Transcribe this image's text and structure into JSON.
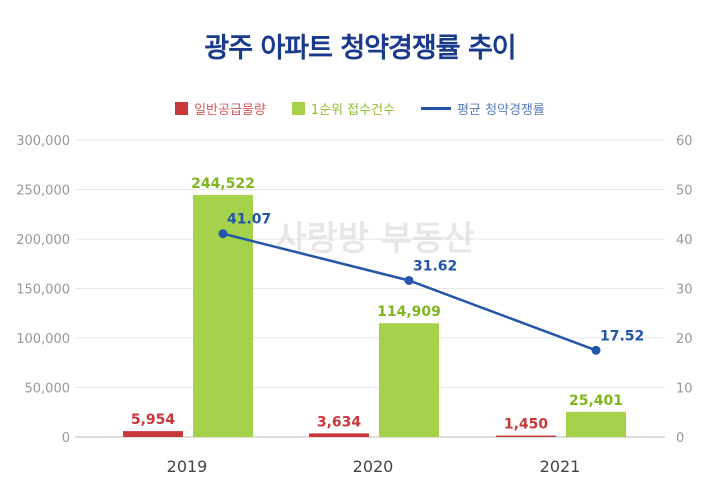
{
  "title": "광주 아파트 청약경쟁률 추이",
  "watermark": "사랑방 부동산",
  "colors": {
    "supply": "#c8383a",
    "applications": "#a6d14a",
    "ratio": "#2356a8",
    "title": "#1a3a8c"
  },
  "chart_data": {
    "type": "bar+line",
    "categories": [
      "2019",
      "2020",
      "2021"
    ],
    "series": [
      {
        "name": "일반공급물량",
        "type": "bar",
        "axis": "left",
        "values": [
          5954,
          3634,
          1450
        ],
        "labels": [
          "5,954",
          "3,634",
          "1,450"
        ]
      },
      {
        "name": "1순위 접수건수",
        "type": "bar",
        "axis": "left",
        "values": [
          244522,
          114909,
          25401
        ],
        "labels": [
          "244,522",
          "114,909",
          "25,401"
        ]
      },
      {
        "name": "평균 청약경쟁률",
        "type": "line",
        "axis": "right",
        "values": [
          41.07,
          31.62,
          17.52
        ],
        "labels": [
          "41.07",
          "31.62",
          "17.52"
        ]
      }
    ],
    "y_left": {
      "range": [
        0,
        300000
      ],
      "ticks": [
        "0",
        "50,000",
        "100,000",
        "150,000",
        "200,000",
        "250,000",
        "300,000"
      ]
    },
    "y_right": {
      "range": [
        0,
        60
      ],
      "ticks": [
        "0",
        "10",
        "20",
        "30",
        "40",
        "50",
        "60"
      ]
    },
    "grid": true,
    "legend": "top-center"
  }
}
